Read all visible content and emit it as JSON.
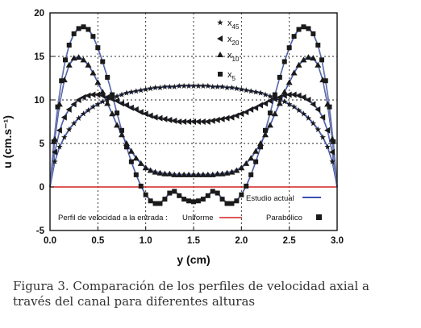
{
  "chart_data": {
    "type": "line",
    "xlabel": "y (cm)",
    "ylabel": "u (cm.s⁻¹)",
    "xlim": [
      0.0,
      3.0
    ],
    "ylim": [
      -5,
      20
    ],
    "xticks": [
      "0.0",
      "0.5",
      "1.0",
      "1.5",
      "2.0",
      "2.5",
      "3.0"
    ],
    "yticks": [
      "-5",
      "0",
      "5",
      "10",
      "15",
      "20"
    ],
    "grid": true,
    "legend_top": [
      {
        "marker": "star",
        "label": "x",
        "sub": "45"
      },
      {
        "marker": "triangle-left",
        "label": "x",
        "sub": "20"
      },
      {
        "marker": "triangle-up",
        "label": "x",
        "sub": "10"
      },
      {
        "marker": "square",
        "label": "x",
        "sub": "5"
      }
    ],
    "legend_bottom": {
      "estudio_label": "Estudio actual",
      "perfil_label": "Perfil de velocidad a la entrada :",
      "uniforme_label": "Uniforme",
      "parabolico_label": "Parabólico"
    },
    "colors": {
      "model": "#3a4fb0",
      "uniform": "#d22222",
      "points": "#1a1a1a"
    },
    "series": [
      {
        "marker": "square",
        "points": [
          [
            0.0,
            0
          ],
          [
            0.04,
            5.2
          ],
          [
            0.08,
            9.2
          ],
          [
            0.12,
            12.2
          ],
          [
            0.16,
            14.6
          ],
          [
            0.2,
            16.3
          ],
          [
            0.25,
            17.6
          ],
          [
            0.3,
            18.2
          ],
          [
            0.35,
            18.4
          ],
          [
            0.4,
            18.1
          ],
          [
            0.45,
            17.3
          ],
          [
            0.5,
            16.0
          ],
          [
            0.55,
            14.4
          ],
          [
            0.6,
            12.6
          ],
          [
            0.65,
            10.6
          ],
          [
            0.7,
            8.5
          ],
          [
            0.75,
            6.5
          ],
          [
            0.8,
            4.6
          ],
          [
            0.85,
            2.9
          ],
          [
            0.9,
            1.4
          ],
          [
            0.95,
            0.1
          ],
          [
            1.0,
            -0.9
          ],
          [
            1.05,
            -1.6
          ],
          [
            1.1,
            -1.9
          ],
          [
            1.15,
            -1.9
          ],
          [
            1.2,
            -1.4
          ],
          [
            1.25,
            -0.7
          ],
          [
            1.3,
            -0.5
          ],
          [
            1.35,
            -1.0
          ],
          [
            1.4,
            -1.4
          ],
          [
            1.45,
            -1.6
          ],
          [
            1.5,
            -1.7
          ],
          [
            1.55,
            -1.6
          ],
          [
            1.6,
            -1.4
          ],
          [
            1.65,
            -1.0
          ],
          [
            1.7,
            -0.5
          ],
          [
            1.75,
            -0.7
          ],
          [
            1.8,
            -1.4
          ],
          [
            1.85,
            -1.9
          ],
          [
            1.9,
            -1.9
          ],
          [
            1.95,
            -1.6
          ],
          [
            2.0,
            -0.9
          ],
          [
            2.05,
            0.1
          ],
          [
            2.1,
            1.4
          ],
          [
            2.15,
            2.9
          ],
          [
            2.2,
            4.6
          ],
          [
            2.25,
            6.5
          ],
          [
            2.3,
            8.5
          ],
          [
            2.35,
            10.6
          ],
          [
            2.4,
            12.6
          ],
          [
            2.45,
            14.4
          ],
          [
            2.5,
            16.0
          ],
          [
            2.55,
            17.3
          ],
          [
            2.6,
            18.1
          ],
          [
            2.65,
            18.4
          ],
          [
            2.7,
            18.2
          ],
          [
            2.75,
            17.6
          ],
          [
            2.8,
            16.3
          ],
          [
            2.84,
            14.6
          ],
          [
            2.88,
            12.2
          ],
          [
            2.92,
            9.2
          ],
          [
            2.96,
            5.2
          ],
          [
            3.0,
            0
          ]
        ]
      },
      {
        "marker": "triangle-up",
        "points": [
          [
            0.0,
            0
          ],
          [
            0.05,
            5.5
          ],
          [
            0.1,
            9.5
          ],
          [
            0.15,
            12.3
          ],
          [
            0.2,
            14.0
          ],
          [
            0.25,
            14.8
          ],
          [
            0.3,
            14.9
          ],
          [
            0.35,
            14.6
          ],
          [
            0.4,
            14.0
          ],
          [
            0.45,
            13.1
          ],
          [
            0.5,
            12.0
          ],
          [
            0.55,
            10.9
          ],
          [
            0.6,
            9.6
          ],
          [
            0.65,
            8.4
          ],
          [
            0.7,
            7.1
          ],
          [
            0.75,
            6.0
          ],
          [
            0.8,
            5.0
          ],
          [
            0.85,
            4.1
          ],
          [
            0.9,
            3.3
          ],
          [
            0.95,
            2.7
          ],
          [
            1.0,
            2.2
          ],
          [
            1.05,
            1.9
          ],
          [
            1.1,
            1.7
          ],
          [
            1.15,
            1.6
          ],
          [
            1.2,
            1.5
          ],
          [
            1.25,
            1.5
          ],
          [
            1.3,
            1.4
          ],
          [
            1.35,
            1.4
          ],
          [
            1.4,
            1.4
          ],
          [
            1.45,
            1.4
          ],
          [
            1.5,
            1.4
          ],
          [
            1.55,
            1.4
          ],
          [
            1.6,
            1.4
          ],
          [
            1.65,
            1.4
          ],
          [
            1.7,
            1.4
          ],
          [
            1.75,
            1.5
          ],
          [
            1.8,
            1.5
          ],
          [
            1.85,
            1.6
          ],
          [
            1.9,
            1.7
          ],
          [
            1.95,
            1.9
          ],
          [
            2.0,
            2.2
          ],
          [
            2.05,
            2.7
          ],
          [
            2.1,
            3.3
          ],
          [
            2.15,
            4.1
          ],
          [
            2.2,
            5.0
          ],
          [
            2.25,
            6.0
          ],
          [
            2.3,
            7.1
          ],
          [
            2.35,
            8.4
          ],
          [
            2.4,
            9.6
          ],
          [
            2.45,
            10.9
          ],
          [
            2.5,
            12.0
          ],
          [
            2.55,
            13.1
          ],
          [
            2.6,
            14.0
          ],
          [
            2.65,
            14.6
          ],
          [
            2.7,
            14.9
          ],
          [
            2.75,
            14.8
          ],
          [
            2.8,
            14.0
          ],
          [
            2.85,
            12.3
          ],
          [
            2.9,
            9.5
          ],
          [
            2.95,
            5.5
          ],
          [
            3.0,
            0
          ]
        ]
      },
      {
        "marker": "triangle-left",
        "points": [
          [
            0.0,
            0
          ],
          [
            0.05,
            4.0
          ],
          [
            0.1,
            6.5
          ],
          [
            0.15,
            8.0
          ],
          [
            0.2,
            8.9
          ],
          [
            0.25,
            9.5
          ],
          [
            0.3,
            10.0
          ],
          [
            0.35,
            10.3
          ],
          [
            0.4,
            10.5
          ],
          [
            0.45,
            10.6
          ],
          [
            0.5,
            10.6
          ],
          [
            0.55,
            10.5
          ],
          [
            0.6,
            10.3
          ],
          [
            0.65,
            10.1
          ],
          [
            0.7,
            9.9
          ],
          [
            0.75,
            9.6
          ],
          [
            0.8,
            9.4
          ],
          [
            0.85,
            9.1
          ],
          [
            0.9,
            8.9
          ],
          [
            0.95,
            8.6
          ],
          [
            1.0,
            8.4
          ],
          [
            1.05,
            8.2
          ],
          [
            1.1,
            8.0
          ],
          [
            1.15,
            7.9
          ],
          [
            1.2,
            7.8
          ],
          [
            1.25,
            7.7
          ],
          [
            1.3,
            7.6
          ],
          [
            1.35,
            7.5
          ],
          [
            1.4,
            7.5
          ],
          [
            1.45,
            7.5
          ],
          [
            1.5,
            7.5
          ],
          [
            1.55,
            7.5
          ],
          [
            1.6,
            7.5
          ],
          [
            1.65,
            7.5
          ],
          [
            1.7,
            7.6
          ],
          [
            1.75,
            7.7
          ],
          [
            1.8,
            7.8
          ],
          [
            1.85,
            7.9
          ],
          [
            1.9,
            8.0
          ],
          [
            1.95,
            8.2
          ],
          [
            2.0,
            8.4
          ],
          [
            2.05,
            8.6
          ],
          [
            2.1,
            8.9
          ],
          [
            2.15,
            9.1
          ],
          [
            2.2,
            9.4
          ],
          [
            2.25,
            9.6
          ],
          [
            2.3,
            9.9
          ],
          [
            2.35,
            10.1
          ],
          [
            2.4,
            10.3
          ],
          [
            2.45,
            10.5
          ],
          [
            2.5,
            10.6
          ],
          [
            2.55,
            10.6
          ],
          [
            2.6,
            10.5
          ],
          [
            2.65,
            10.3
          ],
          [
            2.7,
            10.0
          ],
          [
            2.75,
            9.5
          ],
          [
            2.8,
            8.9
          ],
          [
            2.85,
            8.0
          ],
          [
            2.9,
            6.5
          ],
          [
            2.95,
            4.0
          ],
          [
            3.0,
            0
          ]
        ]
      },
      {
        "marker": "star",
        "points": [
          [
            0.0,
            0
          ],
          [
            0.05,
            2.9
          ],
          [
            0.1,
            4.6
          ],
          [
            0.15,
            5.7
          ],
          [
            0.2,
            6.6
          ],
          [
            0.25,
            7.3
          ],
          [
            0.3,
            7.9
          ],
          [
            0.35,
            8.4
          ],
          [
            0.4,
            8.8
          ],
          [
            0.45,
            9.2
          ],
          [
            0.5,
            9.5
          ],
          [
            0.55,
            9.8
          ],
          [
            0.6,
            10.0
          ],
          [
            0.65,
            10.2
          ],
          [
            0.7,
            10.4
          ],
          [
            0.75,
            10.6
          ],
          [
            0.8,
            10.8
          ],
          [
            0.85,
            10.9
          ],
          [
            0.9,
            11.0
          ],
          [
            0.95,
            11.1
          ],
          [
            1.0,
            11.2
          ],
          [
            1.05,
            11.3
          ],
          [
            1.1,
            11.4
          ],
          [
            1.15,
            11.4
          ],
          [
            1.2,
            11.5
          ],
          [
            1.25,
            11.5
          ],
          [
            1.3,
            11.5
          ],
          [
            1.35,
            11.6
          ],
          [
            1.4,
            11.6
          ],
          [
            1.45,
            11.6
          ],
          [
            1.5,
            11.6
          ],
          [
            1.55,
            11.6
          ],
          [
            1.6,
            11.6
          ],
          [
            1.65,
            11.6
          ],
          [
            1.7,
            11.5
          ],
          [
            1.75,
            11.5
          ],
          [
            1.8,
            11.5
          ],
          [
            1.85,
            11.4
          ],
          [
            1.9,
            11.4
          ],
          [
            1.95,
            11.3
          ],
          [
            2.0,
            11.2
          ],
          [
            2.05,
            11.1
          ],
          [
            2.1,
            11.0
          ],
          [
            2.15,
            10.9
          ],
          [
            2.2,
            10.8
          ],
          [
            2.25,
            10.6
          ],
          [
            2.3,
            10.4
          ],
          [
            2.35,
            10.2
          ],
          [
            2.4,
            10.0
          ],
          [
            2.45,
            9.8
          ],
          [
            2.5,
            9.5
          ],
          [
            2.55,
            9.2
          ],
          [
            2.6,
            8.8
          ],
          [
            2.65,
            8.4
          ],
          [
            2.7,
            7.9
          ],
          [
            2.75,
            7.3
          ],
          [
            2.8,
            6.6
          ],
          [
            2.85,
            5.7
          ],
          [
            2.9,
            4.6
          ],
          [
            2.95,
            2.9
          ],
          [
            3.0,
            0
          ]
        ]
      }
    ],
    "uniform_line_y": 0
  },
  "caption": {
    "line1": "Figura 3.  Comparación de los perfiles de velocidad axial a",
    "line2": "través del canal para diferentes alturas"
  }
}
